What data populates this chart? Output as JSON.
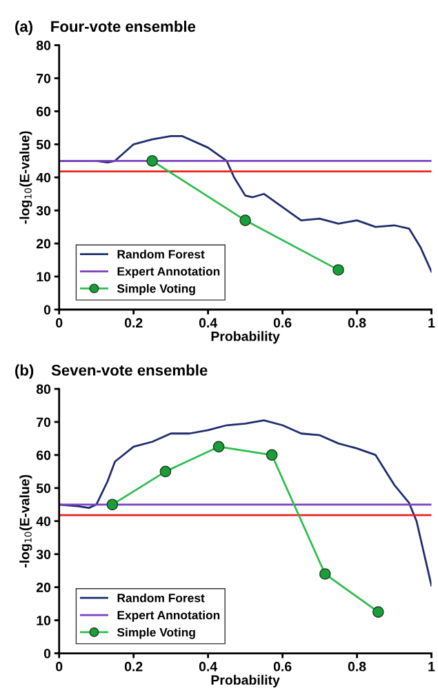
{
  "chart_data": [
    {
      "type": "line",
      "title": "(a)    Four-vote ensemble",
      "xlabel": "Probability",
      "ylabel": "-log$_{10}$(E-value)",
      "xlim": [
        0,
        1
      ],
      "ylim": [
        0,
        80
      ],
      "xticks": [
        0,
        0.2,
        0.4,
        0.6,
        0.8,
        1
      ],
      "yticks": [
        0,
        10,
        20,
        30,
        40,
        50,
        60,
        70,
        80
      ],
      "grid": false,
      "legend": "bottom left",
      "series": [
        {
          "name": "Random Forest",
          "color": "#1f2d6e",
          "x": [
            0,
            0.05,
            0.1,
            0.13,
            0.15,
            0.2,
            0.25,
            0.3,
            0.33,
            0.4,
            0.45,
            0.47,
            0.5,
            0.52,
            0.55,
            0.6,
            0.65,
            0.7,
            0.75,
            0.8,
            0.85,
            0.9,
            0.94,
            0.97,
            1
          ],
          "values": [
            45,
            45,
            45,
            44.5,
            45,
            50,
            51.5,
            52.5,
            52.5,
            49,
            45,
            40,
            34.5,
            34,
            35,
            31,
            27,
            27.5,
            26,
            27,
            25,
            25.5,
            24.5,
            19,
            11.5
          ]
        },
        {
          "color": "#e8231f",
          "x": [
            0,
            1
          ],
          "values": [
            41.8,
            41.8
          ]
        },
        {
          "name": "Expert Annotation",
          "color": "#7b3fbf",
          "x": [
            0,
            1
          ],
          "values": [
            45,
            45
          ]
        },
        {
          "name": "Simple Voting",
          "color": "#2ebd4f",
          "marker": "circle",
          "x": [
            0.25,
            0.5,
            0.75
          ],
          "values": [
            45,
            27,
            12
          ]
        }
      ]
    },
    {
      "type": "line",
      "title": "(b)    Seven-vote ensemble",
      "xlabel": "Probability",
      "ylabel": "-log$_{10}$(E-value)",
      "xlim": [
        0,
        1
      ],
      "ylim": [
        0,
        80
      ],
      "xticks": [
        0,
        0.2,
        0.4,
        0.6,
        0.8,
        1
      ],
      "yticks": [
        0,
        10,
        20,
        30,
        40,
        50,
        60,
        70,
        80
      ],
      "grid": false,
      "legend": "bottom left",
      "series": [
        {
          "name": "Random Forest",
          "color": "#1f2d6e",
          "x": [
            0,
            0.05,
            0.08,
            0.1,
            0.13,
            0.15,
            0.2,
            0.25,
            0.3,
            0.35,
            0.4,
            0.45,
            0.5,
            0.55,
            0.6,
            0.65,
            0.7,
            0.75,
            0.8,
            0.85,
            0.9,
            0.94,
            0.96,
            1
          ],
          "values": [
            45,
            44.5,
            44,
            45,
            52,
            58,
            62.5,
            64,
            66.5,
            66.5,
            67.5,
            69,
            69.5,
            70.5,
            69,
            66.5,
            66,
            63.5,
            62,
            60,
            51,
            45.5,
            40,
            20.5
          ]
        },
        {
          "color": "#e8231f",
          "x": [
            0,
            1
          ],
          "values": [
            41.8,
            41.8
          ]
        },
        {
          "name": "Expert Annotation",
          "color": "#7b3fbf",
          "x": [
            0,
            1
          ],
          "values": [
            45,
            45
          ]
        },
        {
          "name": "Simple Voting",
          "color": "#2ebd4f",
          "marker": "circle",
          "x": [
            0.1429,
            0.2857,
            0.4286,
            0.5714,
            0.7143,
            0.8571
          ],
          "values": [
            45,
            55,
            62.5,
            60,
            24,
            12.5
          ]
        }
      ]
    }
  ]
}
